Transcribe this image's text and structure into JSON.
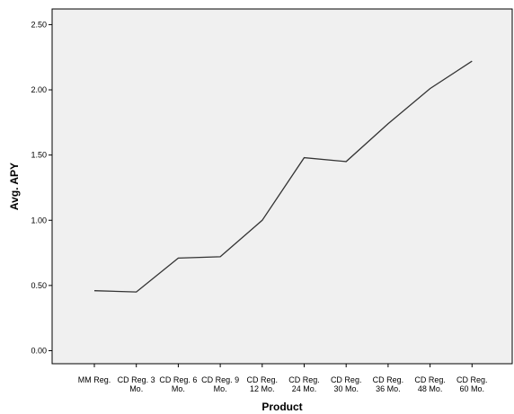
{
  "chart_data": {
    "type": "line",
    "xlabel": "Product",
    "ylabel": "Avg. APY",
    "categories": [
      [
        "MM Reg."
      ],
      [
        "CD Reg. 3",
        "Mo."
      ],
      [
        "CD Reg. 6",
        "Mo."
      ],
      [
        "CD Reg. 9",
        "Mo."
      ],
      [
        "CD Reg.",
        "12 Mo."
      ],
      [
        "CD Reg.",
        "24 Mo."
      ],
      [
        "CD Reg.",
        "30 Mo."
      ],
      [
        "CD Reg.",
        "36 Mo."
      ],
      [
        "CD Reg.",
        "48 Mo."
      ],
      [
        "CD Reg.",
        "60 Mo."
      ]
    ],
    "series": [
      {
        "values": [
          0.46,
          0.45,
          0.71,
          0.72,
          1.0,
          1.48,
          1.45,
          1.74,
          2.01,
          2.22
        ]
      }
    ],
    "ylim": [
      -0.1,
      2.62
    ],
    "yticks": [
      "0.00",
      "0.50",
      "1.00",
      "1.50",
      "2.00",
      "2.50"
    ],
    "grid": false,
    "line_color": "#333333",
    "plot_background": "#f0f0f0"
  }
}
